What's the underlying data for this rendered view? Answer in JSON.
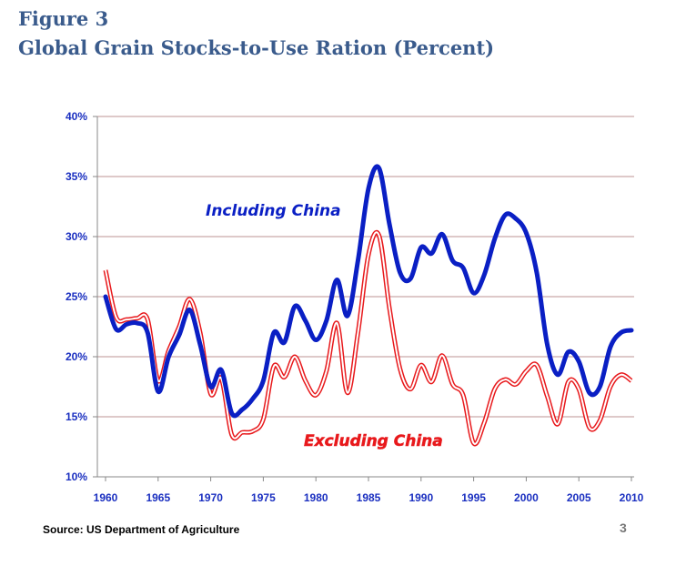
{
  "figure_label": "Figure 3",
  "page_number": "3",
  "source": "Source: US Department of Agriculture",
  "chart_data": {
    "type": "line",
    "title": "Global Grain Stocks-to-Use Ration (Percent)",
    "xlabel": "",
    "ylabel": "",
    "xlim": [
      1960,
      2010
    ],
    "ylim": [
      10,
      40
    ],
    "x_ticks": [
      1960,
      1965,
      1970,
      1975,
      1980,
      1985,
      1990,
      1995,
      2000,
      2005,
      2010
    ],
    "y_ticks": [
      10,
      15,
      20,
      25,
      30,
      35,
      40
    ],
    "y_tick_labels": [
      "10%",
      "15%",
      "20%",
      "25%",
      "30%",
      "35%",
      "40%"
    ],
    "grid": true,
    "x": [
      1960,
      1961,
      1962,
      1963,
      1964,
      1965,
      1966,
      1967,
      1968,
      1969,
      1970,
      1971,
      1972,
      1973,
      1974,
      1975,
      1976,
      1977,
      1978,
      1979,
      1980,
      1981,
      1982,
      1983,
      1984,
      1985,
      1986,
      1987,
      1988,
      1989,
      1990,
      1991,
      1992,
      1993,
      1994,
      1995,
      1996,
      1997,
      1998,
      1999,
      2000,
      2001,
      2002,
      2003,
      2004,
      2005,
      2006,
      2007,
      2008,
      2009,
      2010
    ],
    "series": [
      {
        "name": "Including China",
        "color": "#0a1fc4",
        "values": [
          25,
          22.3,
          22.7,
          22.8,
          22,
          17.1,
          20,
          21.8,
          23.9,
          21,
          17.5,
          18.9,
          15.3,
          15.6,
          16.5,
          18,
          22,
          21.2,
          24.2,
          23,
          21.4,
          23,
          26.4,
          23.4,
          28,
          34,
          35.7,
          31,
          27,
          26.5,
          29.1,
          28.6,
          30.2,
          28,
          27.4,
          25.3,
          26.8,
          29.8,
          31.8,
          31.5,
          30.3,
          27,
          21,
          18.5,
          20.4,
          19.6,
          17,
          17.5,
          20.8,
          22,
          22.2
        ]
      },
      {
        "name": "Excluding China",
        "color": "#e8191c",
        "values": [
          27.2,
          23.3,
          23.1,
          23.2,
          23.1,
          18,
          20.5,
          22.5,
          24.8,
          22,
          16.9,
          18.2,
          13.5,
          13.7,
          13.8,
          14.8,
          19.2,
          18.3,
          20,
          18,
          16.8,
          18.8,
          22.8,
          17,
          22,
          28.5,
          30.1,
          24,
          19,
          17.3,
          19.3,
          17.9,
          20.1,
          17.7,
          16.8,
          12.8,
          14.5,
          17.3,
          18.1,
          17.7,
          18.8,
          19.3,
          16.7,
          14.4,
          17.9,
          17.3,
          14.1,
          14.7,
          17.5,
          18.5,
          18
        ]
      }
    ],
    "axis_color": "#1a2fc0",
    "grid_color": "#c9a9a9"
  }
}
